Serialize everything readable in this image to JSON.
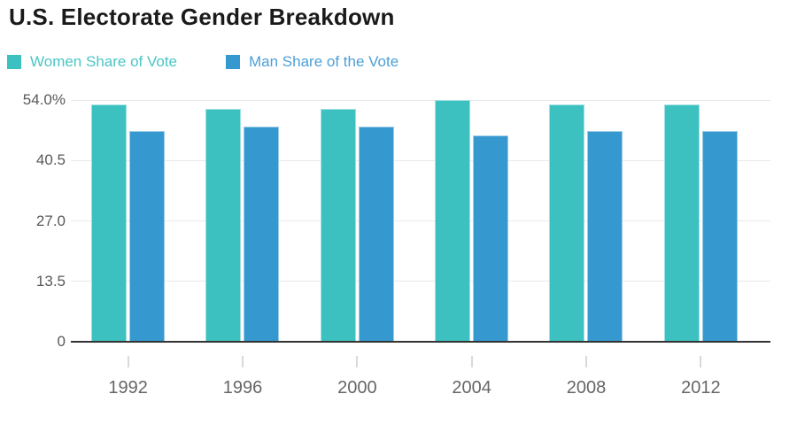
{
  "title": "U.S. Electorate Gender Breakdown",
  "legend": [
    {
      "label": "Women Share of Vote",
      "color": "#3DC0C0",
      "text_color": "#4CC5C5"
    },
    {
      "label": "Man Share of the Vote",
      "color": "#3598CE",
      "text_color": "#4D9FD6"
    }
  ],
  "chart_data": {
    "type": "bar",
    "title": "U.S. Electorate Gender Breakdown",
    "categories": [
      "1992",
      "1996",
      "2000",
      "2004",
      "2008",
      "2012"
    ],
    "series": [
      {
        "name": "Women Share of Vote",
        "color": "#3DC0C0",
        "values": [
          53,
          52,
          52,
          54,
          53,
          53
        ]
      },
      {
        "name": "Man Share of the Vote",
        "color": "#3598CE",
        "values": [
          47,
          48,
          48,
          46,
          47,
          47
        ]
      }
    ],
    "unit": "percent",
    "ylim": [
      0,
      54
    ],
    "y_ticks": [
      {
        "label": "54.0%",
        "value": 54
      },
      {
        "label": "40.5",
        "value": 40.5
      },
      {
        "label": "27.0",
        "value": 27
      },
      {
        "label": "13.5",
        "value": 13.5
      },
      {
        "label": "0",
        "value": 0
      }
    ],
    "grid": "horizontal",
    "legend_position": "top-left",
    "xlabel": "",
    "ylabel": ""
  }
}
